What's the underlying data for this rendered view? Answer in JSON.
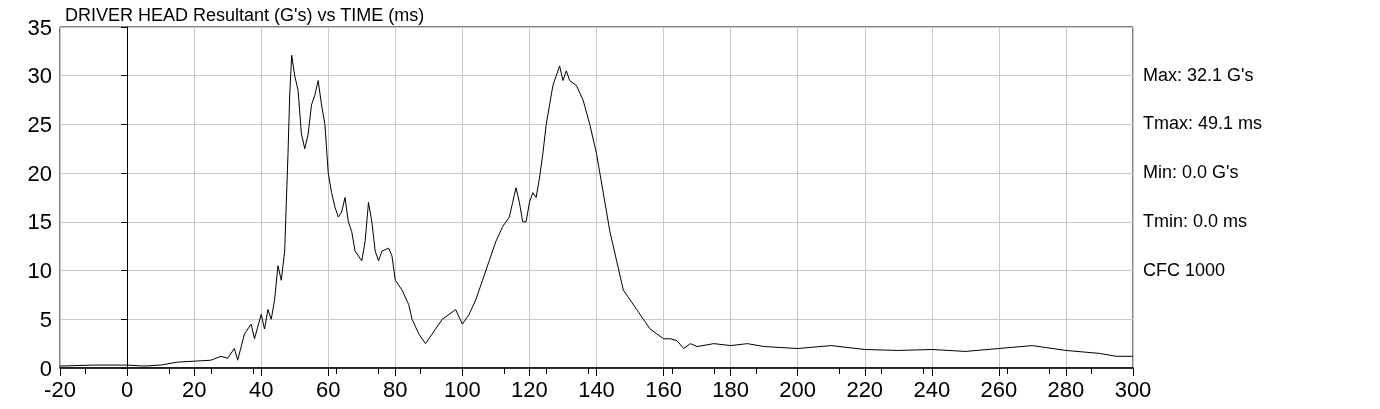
{
  "chart_data": {
    "type": "line",
    "title": "DRIVER HEAD Resultant (G's) vs TIME (ms)",
    "x": [
      -20,
      -10,
      0,
      5,
      10,
      15,
      20,
      25,
      28,
      30,
      32,
      33,
      35,
      37,
      38,
      40,
      41,
      42,
      43,
      44,
      45,
      46,
      47,
      48,
      48.5,
      49.1,
      50,
      51,
      52,
      53,
      54,
      55,
      56,
      57,
      58,
      59,
      60,
      61,
      62,
      63,
      64,
      65,
      66,
      67,
      68,
      69,
      70,
      71,
      72,
      73,
      74,
      75,
      76,
      78,
      79,
      80,
      82,
      84,
      85,
      87,
      89,
      90,
      92,
      94,
      96,
      98,
      100,
      102,
      104,
      106,
      108,
      110,
      112,
      114,
      115,
      116,
      117,
      118,
      119,
      120,
      121,
      122,
      123,
      124,
      125,
      126,
      127,
      128,
      129,
      130,
      131,
      132,
      134,
      136,
      138,
      140,
      142,
      144,
      146,
      148,
      150,
      152,
      154,
      156,
      158,
      160,
      162,
      164,
      166,
      168,
      170,
      175,
      180,
      185,
      190,
      200,
      210,
      220,
      230,
      240,
      250,
      260,
      270,
      280,
      290,
      295,
      300
    ],
    "series": [
      {
        "color": "#000000",
        "values": [
          0.2,
          0.3,
          0.3,
          0.2,
          0.3,
          0.6,
          0.7,
          0.8,
          1.2,
          1.0,
          2.0,
          0.8,
          3.5,
          4.5,
          3.0,
          5.5,
          4.0,
          6.0,
          5.0,
          7.0,
          10.5,
          9.0,
          12.0,
          22,
          28,
          32.1,
          30,
          28.5,
          24,
          22.5,
          24,
          27,
          28,
          29.5,
          27,
          25,
          20,
          18,
          16.5,
          15.5,
          16,
          17.5,
          15,
          14,
          12,
          11.5,
          11,
          13,
          17,
          15,
          12,
          11,
          12,
          12.3,
          11.5,
          9,
          8,
          6.5,
          5,
          3.5,
          2.5,
          3.0,
          4,
          5,
          5.5,
          6,
          4.5,
          5.5,
          7,
          9,
          11,
          13,
          14.5,
          15.5,
          17,
          18.5,
          17,
          15,
          15,
          17,
          18,
          17.5,
          19.5,
          22,
          25,
          27,
          29,
          30,
          31,
          29.5,
          30.5,
          29.5,
          29,
          27.5,
          25,
          22,
          18,
          14,
          11,
          8,
          7,
          6,
          5,
          4,
          3.5,
          3,
          3,
          2.8,
          2,
          2.5,
          2.2,
          2.5,
          2.3,
          2.5,
          2.2,
          2.0,
          2.3,
          1.9,
          1.8,
          1.9,
          1.7,
          2.0,
          2.3,
          1.8,
          1.5,
          1.2,
          1.2
        ]
      }
    ],
    "xlim": [
      -20,
      300
    ],
    "xticks": [
      -20,
      0,
      20,
      40,
      60,
      80,
      100,
      120,
      140,
      160,
      180,
      200,
      220,
      240,
      260,
      280,
      300
    ],
    "ylim": [
      0,
      35
    ],
    "yticks": [
      0,
      5,
      10,
      15,
      20,
      25,
      30,
      35
    ],
    "grid": true,
    "marker": "none",
    "line_style": "solid",
    "annotations": [
      "Max: 32.1 G's",
      "Tmax: 49.1 ms",
      "Min: 0.0 G's",
      "Tmin: 0.0 ms",
      "CFC 1000"
    ]
  }
}
